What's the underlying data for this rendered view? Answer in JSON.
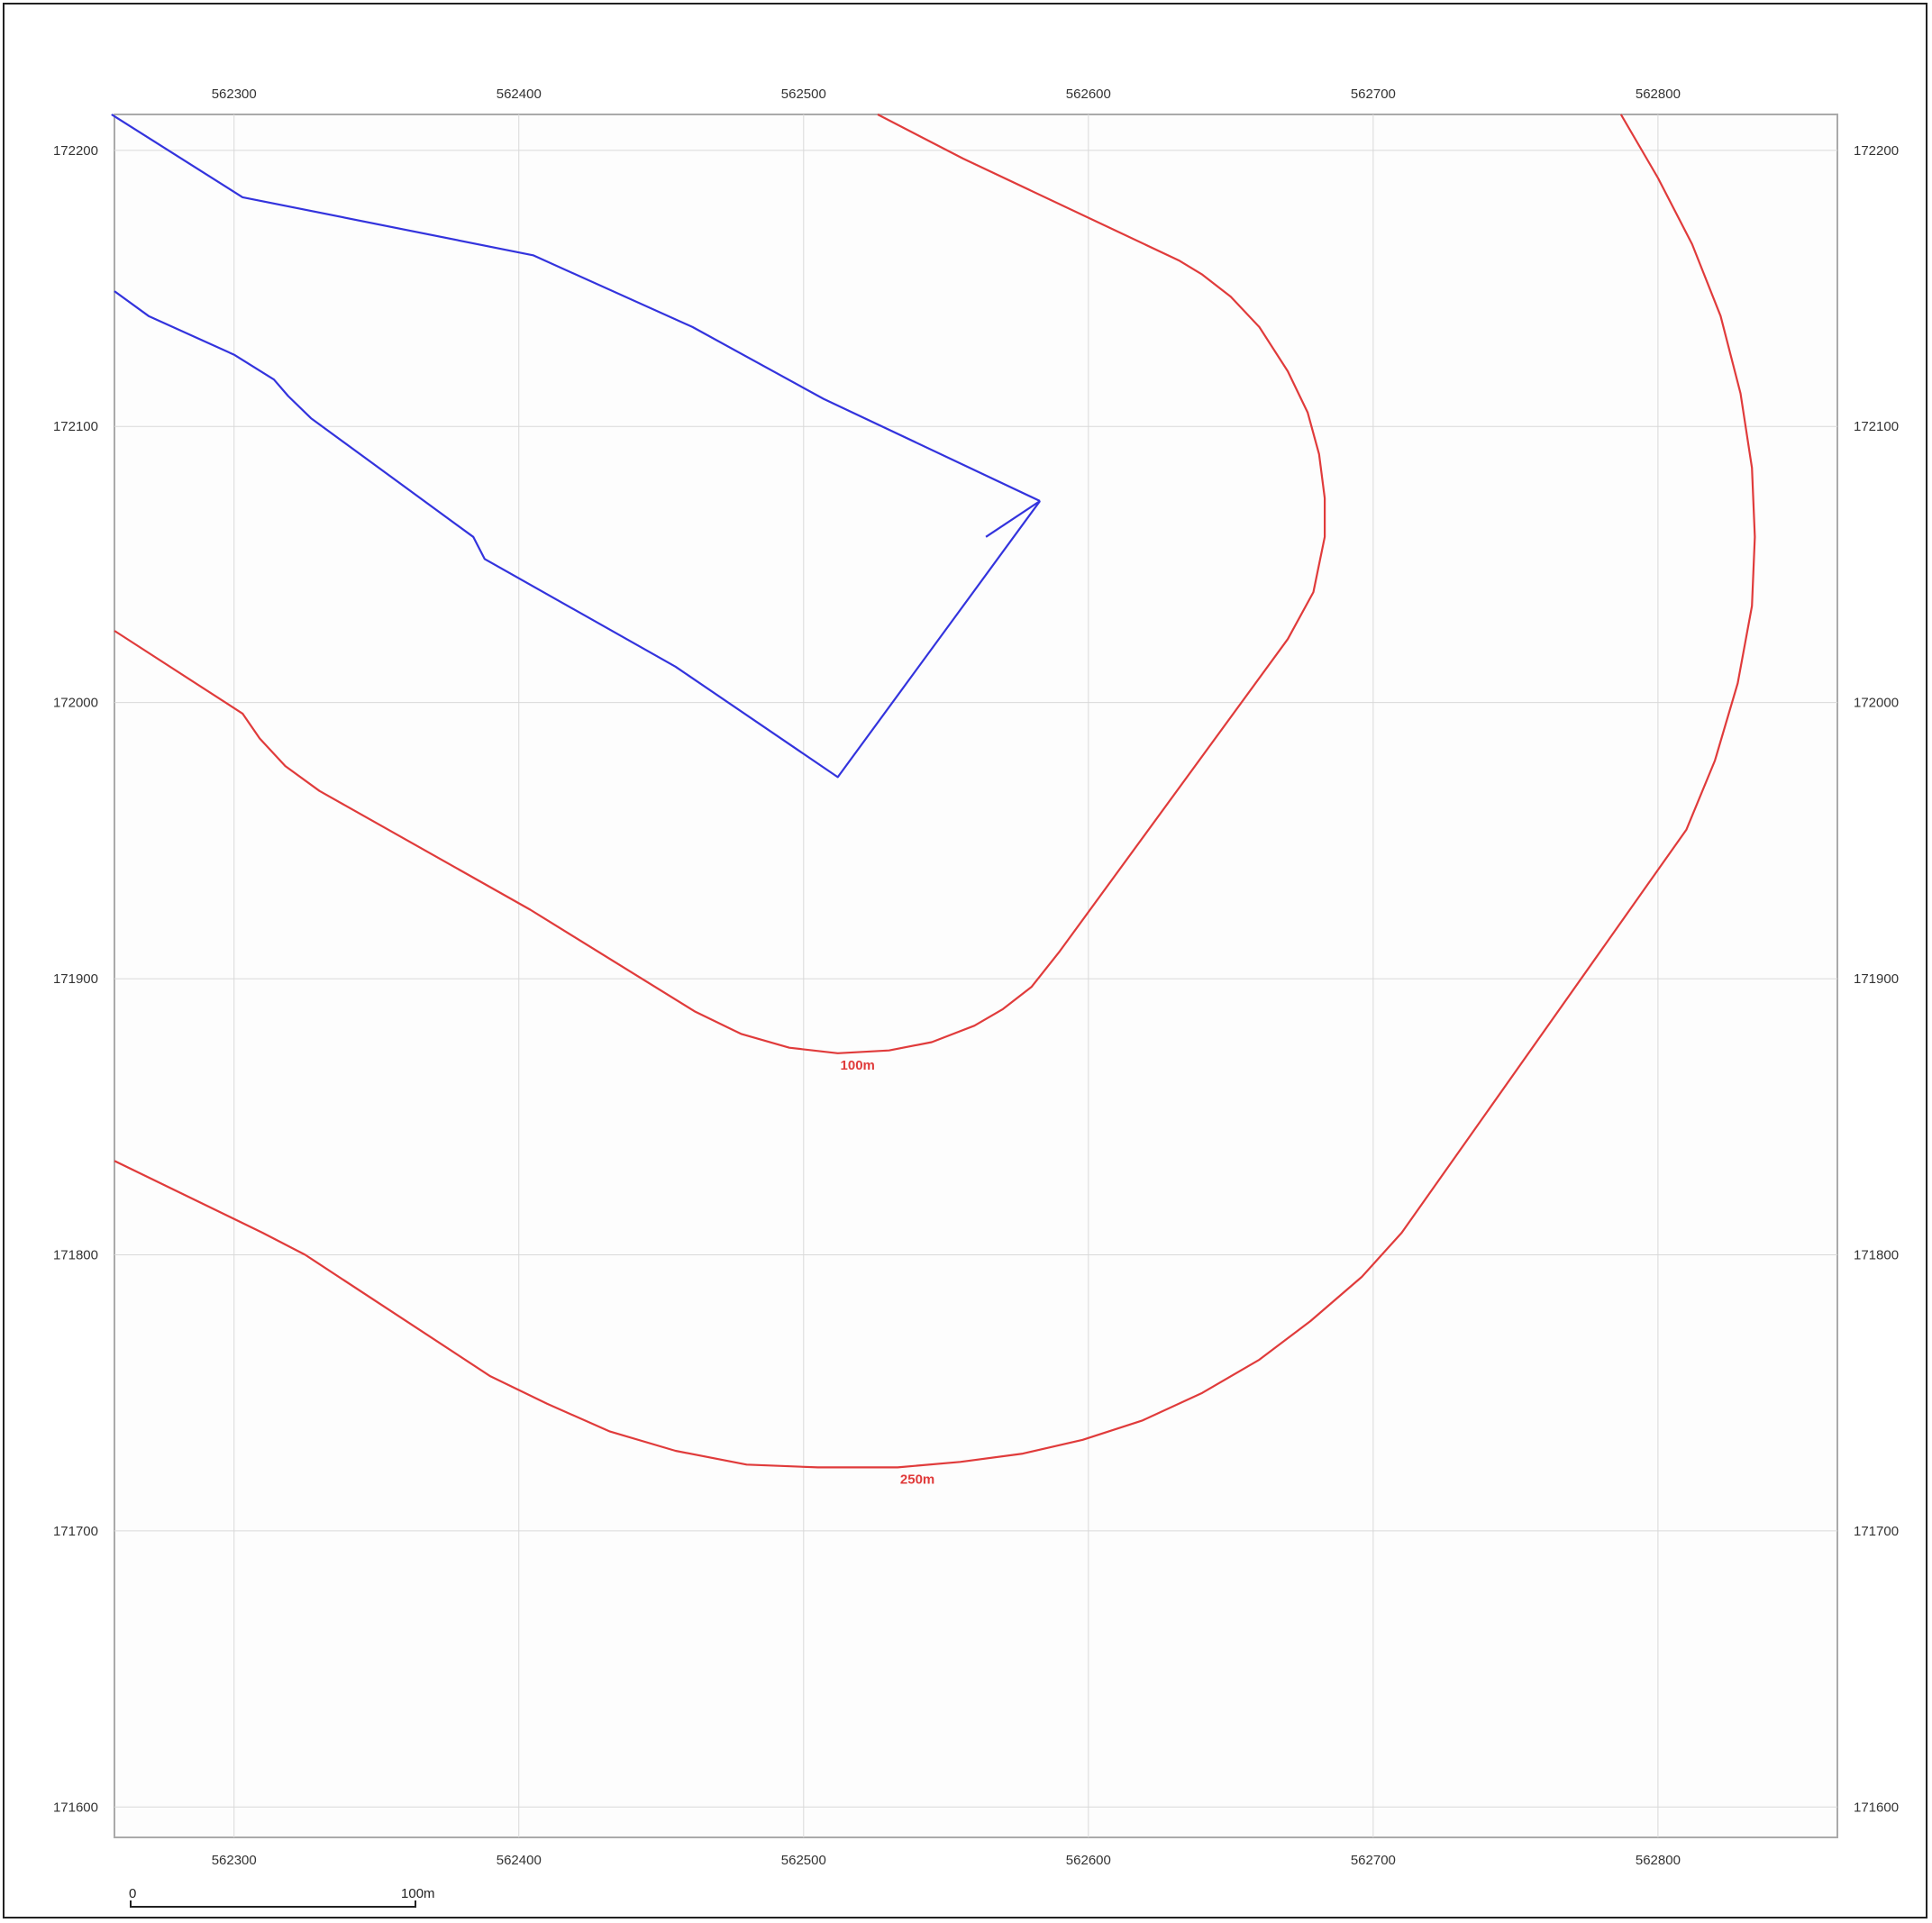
{
  "map": {
    "x_ticks": [
      "562300",
      "562400",
      "562500",
      "562600",
      "562700",
      "562800"
    ],
    "y_ticks": [
      "172200",
      "172100",
      "172000",
      "171900",
      "171800",
      "171700",
      "171600"
    ],
    "buffer_labels": [
      "100m",
      "250m"
    ],
    "scale_bar": {
      "start_label": "0",
      "end_label": "100m"
    },
    "colors": {
      "site_boundary": "#3333dd",
      "buffer_line": "#e03b3b",
      "buffer_label": "#e03b3b",
      "grid": "#d9d9d9",
      "frame": "#aaaaaa",
      "background": "#fdfdfd"
    },
    "site_boundary_lines": [
      [
        [
          562257,
          172213
        ],
        [
          562303,
          172183
        ],
        [
          562405,
          172162
        ],
        [
          562461,
          172136
        ],
        [
          562507,
          172110
        ],
        [
          562583,
          172073
        ]
      ],
      [
        [
          562583,
          172073
        ],
        [
          562512,
          171973
        ],
        [
          562455,
          172013
        ],
        [
          562388,
          172052
        ],
        [
          562384,
          172060
        ],
        [
          562327,
          172103
        ],
        [
          562319,
          172111
        ],
        [
          562314,
          172117
        ],
        [
          562300,
          172126
        ],
        [
          562270,
          172140
        ],
        [
          562258,
          172149
        ]
      ],
      [
        [
          562583,
          172073
        ],
        [
          562564,
          172060
        ]
      ]
    ],
    "buffer_100m": [
      [
        562526,
        172213
      ],
      [
        562556,
        172197
      ],
      [
        562632,
        172160
      ],
      [
        562640,
        172155
      ],
      [
        562650,
        172147
      ],
      [
        562660,
        172136
      ],
      [
        562670,
        172120
      ],
      [
        562677,
        172105
      ],
      [
        562681,
        172090
      ],
      [
        562683,
        172074
      ],
      [
        562683,
        172060
      ],
      [
        562679,
        172040
      ],
      [
        562670,
        172023
      ],
      [
        562590,
        171910
      ],
      [
        562580,
        171897
      ],
      [
        562570,
        171889
      ],
      [
        562560,
        171883
      ],
      [
        562545,
        171877
      ],
      [
        562530,
        171874
      ],
      [
        562512,
        171873
      ],
      [
        562495,
        171875
      ],
      [
        562478,
        171880
      ],
      [
        562462,
        171888
      ],
      [
        562404,
        171925
      ],
      [
        562330,
        171968
      ],
      [
        562318,
        171977
      ],
      [
        562309,
        171987
      ],
      [
        562303,
        171996
      ],
      [
        562258,
        172026
      ]
    ],
    "buffer_250m": [
      [
        562787,
        172213
      ],
      [
        562800,
        172190
      ],
      [
        562812,
        172166
      ],
      [
        562822,
        172140
      ],
      [
        562829,
        172112
      ],
      [
        562833,
        172085
      ],
      [
        562834,
        172060
      ],
      [
        562833,
        172035
      ],
      [
        562828,
        172007
      ],
      [
        562820,
        171979
      ],
      [
        562810,
        171954
      ],
      [
        562797,
        171935
      ],
      [
        562710,
        171808
      ],
      [
        562696,
        171792
      ],
      [
        562678,
        171776
      ],
      [
        562660,
        171762
      ],
      [
        562640,
        171750
      ],
      [
        562619,
        171740
      ],
      [
        562598,
        171733
      ],
      [
        562577,
        171728
      ],
      [
        562555,
        171725
      ],
      [
        562533,
        171723
      ],
      [
        562505,
        171723
      ],
      [
        562480,
        171724
      ],
      [
        562455,
        171729
      ],
      [
        562432,
        171736
      ],
      [
        562410,
        171746
      ],
      [
        562390,
        171756
      ],
      [
        562325,
        171800
      ],
      [
        562310,
        171808
      ],
      [
        562258,
        171834
      ]
    ],
    "extent": {
      "x_min": 562258,
      "x_max": 562863,
      "y_min": 171589,
      "y_max": 172213
    },
    "scale_bar_meters": 100
  }
}
